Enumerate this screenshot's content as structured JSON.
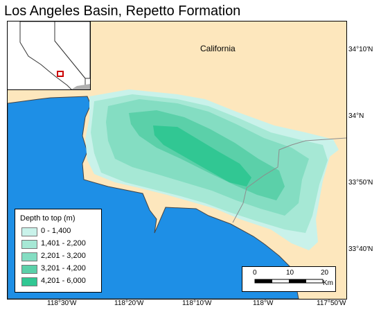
{
  "title": "Los Angeles Basin, Repetto Formation",
  "map": {
    "state_label": "California",
    "colors": {
      "land": "#fde7bd",
      "ocean": "#1e8fe6",
      "coastline": "#444444",
      "border": "#8c8c8c"
    }
  },
  "legend": {
    "title": "Depth to top  (m)",
    "classes": [
      {
        "label": "0 - 1,400",
        "color": "#c9f2ea"
      },
      {
        "label": "1,401 - 2,200",
        "color": "#a6e8d5"
      },
      {
        "label": "2,201 - 3,200",
        "color": "#84ddc2"
      },
      {
        "label": "3,201 - 4,200",
        "color": "#5bd0a9"
      },
      {
        "label": "4,201 - 6,000",
        "color": "#31c793"
      }
    ]
  },
  "scalebar": {
    "ticks": [
      "0",
      "10",
      "20"
    ],
    "units": "Km"
  },
  "graticule": {
    "latitudes": [
      "34°10'N",
      "34°N",
      "33°50'N",
      "33°40'N"
    ],
    "longitudes": [
      "118°30'W",
      "118°20'W",
      "118°10'W",
      "118°W",
      "117°50'W"
    ]
  }
}
